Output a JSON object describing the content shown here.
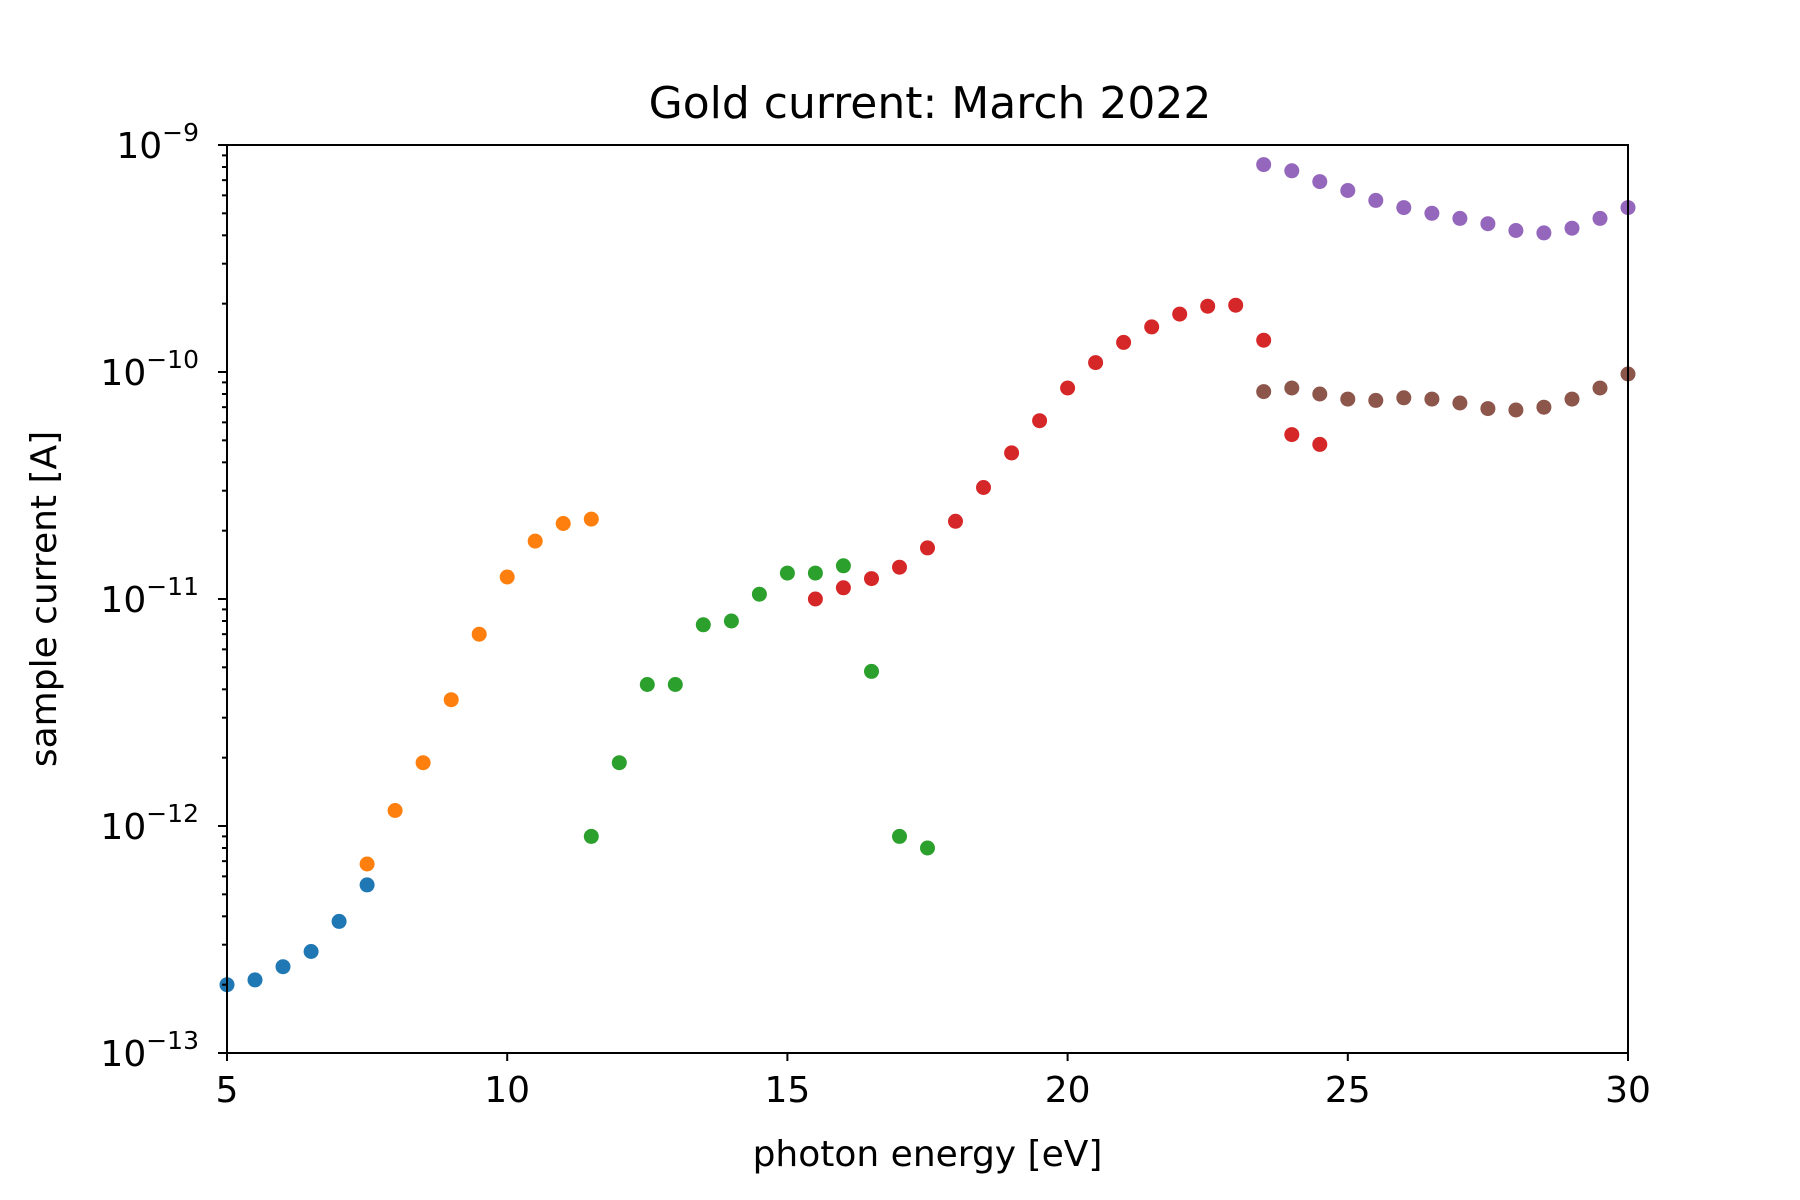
{
  "chart_data": {
    "type": "scatter",
    "title": "Gold current: March 2022",
    "xlabel": "photon energy [eV]",
    "ylabel": "sample current [A]",
    "xlim": [
      5,
      30
    ],
    "ylim": [
      1e-13,
      1e-09
    ],
    "yscale": "log",
    "grid": false,
    "x_ticks": [
      {
        "value": 5,
        "label": "5"
      },
      {
        "value": 10,
        "label": "10"
      },
      {
        "value": 15,
        "label": "15"
      },
      {
        "value": 20,
        "label": "20"
      },
      {
        "value": 25,
        "label": "25"
      },
      {
        "value": 30,
        "label": "30"
      }
    ],
    "y_ticks": [
      {
        "value": 1e-13,
        "base": "10",
        "exp": "−13"
      },
      {
        "value": 1e-12,
        "base": "10",
        "exp": "−12"
      },
      {
        "value": 1e-11,
        "base": "10",
        "exp": "−11"
      },
      {
        "value": 1e-10,
        "base": "10",
        "exp": "−10"
      },
      {
        "value": 1e-09,
        "base": "10",
        "exp": "−9"
      }
    ],
    "series": [
      {
        "color": "#1f77b4",
        "points": [
          [
            5.0,
            2e-13
          ],
          [
            5.5,
            2.1e-13
          ],
          [
            6.0,
            2.4e-13
          ],
          [
            6.5,
            2.8e-13
          ],
          [
            7.0,
            3.8e-13
          ],
          [
            7.5,
            5.5e-13
          ]
        ]
      },
      {
        "color": "#ff7f0e",
        "points": [
          [
            7.5,
            6.8e-13
          ],
          [
            8.0,
            1.17e-12
          ],
          [
            8.5,
            1.9e-12
          ],
          [
            9.0,
            3.6e-12
          ],
          [
            9.5,
            7e-12
          ],
          [
            10.0,
            1.25e-11
          ],
          [
            10.5,
            1.8e-11
          ],
          [
            11.0,
            2.15e-11
          ],
          [
            11.5,
            2.25e-11
          ]
        ]
      },
      {
        "color": "#2ca02c",
        "points": [
          [
            11.5,
            9e-13
          ],
          [
            12.0,
            1.9e-12
          ],
          [
            12.5,
            4.2e-12
          ],
          [
            13.0,
            4.2e-12
          ],
          [
            13.5,
            7.7e-12
          ],
          [
            14.0,
            8e-12
          ],
          [
            14.5,
            1.05e-11
          ],
          [
            15.0,
            1.3e-11
          ],
          [
            15.5,
            1.3e-11
          ],
          [
            16.0,
            1.4e-11
          ],
          [
            16.5,
            4.8e-12
          ],
          [
            17.0,
            9e-13
          ],
          [
            17.5,
            8e-13
          ]
        ]
      },
      {
        "color": "#d62728",
        "points": [
          [
            15.5,
            1e-11
          ],
          [
            16.0,
            1.12e-11
          ],
          [
            16.5,
            1.23e-11
          ],
          [
            17.0,
            1.38e-11
          ],
          [
            17.5,
            1.68e-11
          ],
          [
            18.0,
            2.2e-11
          ],
          [
            18.5,
            3.1e-11
          ],
          [
            19.0,
            4.4e-11
          ],
          [
            19.5,
            6.1e-11
          ],
          [
            20.0,
            8.5e-11
          ],
          [
            20.5,
            1.1e-10
          ],
          [
            21.0,
            1.35e-10
          ],
          [
            21.5,
            1.58e-10
          ],
          [
            22.0,
            1.8e-10
          ],
          [
            22.5,
            1.95e-10
          ],
          [
            23.0,
            1.97e-10
          ],
          [
            23.5,
            1.38e-10
          ],
          [
            24.0,
            5.3e-11
          ],
          [
            24.5,
            4.8e-11
          ]
        ]
      },
      {
        "color": "#9467bd",
        "points": [
          [
            23.5,
            8.2e-10
          ],
          [
            24.0,
            7.7e-10
          ],
          [
            24.5,
            6.9e-10
          ],
          [
            25.0,
            6.3e-10
          ],
          [
            25.5,
            5.7e-10
          ],
          [
            26.0,
            5.3e-10
          ],
          [
            26.5,
            5e-10
          ],
          [
            27.0,
            4.75e-10
          ],
          [
            27.5,
            4.5e-10
          ],
          [
            28.0,
            4.2e-10
          ],
          [
            28.5,
            4.1e-10
          ],
          [
            29.0,
            4.3e-10
          ],
          [
            29.5,
            4.75e-10
          ],
          [
            30.0,
            5.3e-10
          ]
        ]
      },
      {
        "color": "#8c564b",
        "points": [
          [
            23.5,
            8.2e-11
          ],
          [
            24.0,
            8.5e-11
          ],
          [
            24.5,
            8e-11
          ],
          [
            25.0,
            7.6e-11
          ],
          [
            25.5,
            7.5e-11
          ],
          [
            26.0,
            7.7e-11
          ],
          [
            26.5,
            7.6e-11
          ],
          [
            27.0,
            7.3e-11
          ],
          [
            27.5,
            6.9e-11
          ],
          [
            28.0,
            6.8e-11
          ],
          [
            28.5,
            7e-11
          ],
          [
            29.0,
            7.6e-11
          ],
          [
            29.5,
            8.5e-11
          ],
          [
            30.0,
            9.8e-11
          ]
        ]
      }
    ]
  }
}
